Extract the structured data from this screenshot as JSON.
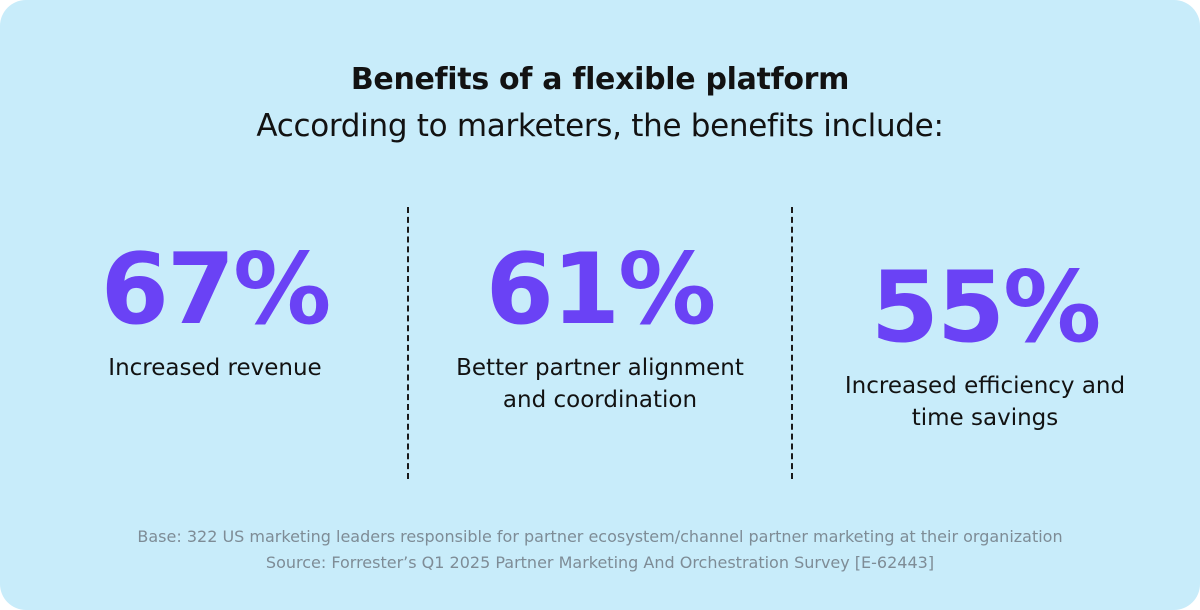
{
  "header": {
    "title": "Benefits of a flexible platform",
    "subtitle": "According to marketers, the benefits include:"
  },
  "stats": [
    {
      "value": "67%",
      "label": "Increased revenue"
    },
    {
      "value": "61%",
      "label": "Better partner alignment\nand coordination"
    },
    {
      "value": "55%",
      "label": "Increased efficiency and\ntime savings"
    }
  ],
  "footer": {
    "base": "Base: 322 US marketing leaders responsible for partner ecosystem/channel partner marketing at their organization",
    "source": "Source: Forrester’s Q1 2025 Partner Marketing And Orchestration Survey [E-62443]"
  },
  "colors": {
    "background": "#c8ecfa",
    "accent": "#6a42f5",
    "text": "#121212",
    "muted": "#7e8c96"
  }
}
